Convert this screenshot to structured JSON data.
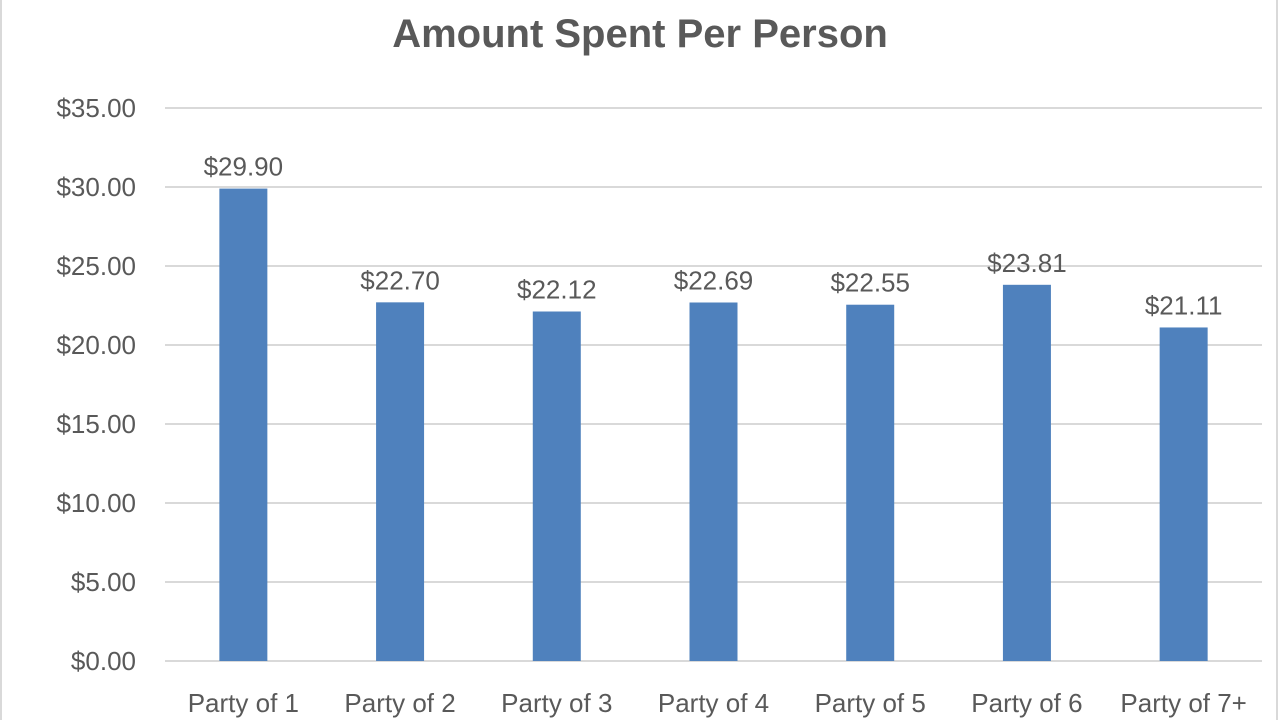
{
  "chart_data": {
    "type": "bar",
    "title": "Amount Spent Per Person",
    "xlabel": "",
    "ylabel": "",
    "categories": [
      "Party of 1",
      "Party of 2",
      "Party of 3",
      "Party of 4",
      "Party of 5",
      "Party of 6",
      "Party of 7+"
    ],
    "values": [
      29.9,
      22.7,
      22.12,
      22.69,
      22.55,
      23.81,
      21.11
    ],
    "data_labels": [
      "$29.90",
      "$22.70",
      "$22.12",
      "$22.69",
      "$22.55",
      "$23.81",
      "$21.11"
    ],
    "ylim": [
      0,
      35
    ],
    "yticks": [
      0,
      5,
      10,
      15,
      20,
      25,
      30,
      35
    ],
    "ytick_labels": [
      "$0.00",
      "$5.00",
      "$10.00",
      "$15.00",
      "$20.00",
      "$25.00",
      "$30.00",
      "$35.00"
    ],
    "grid": true,
    "legend": "none",
    "colors": {
      "bar": "#4f81bd",
      "grid": "#d9d9d9",
      "text": "#595959"
    }
  }
}
